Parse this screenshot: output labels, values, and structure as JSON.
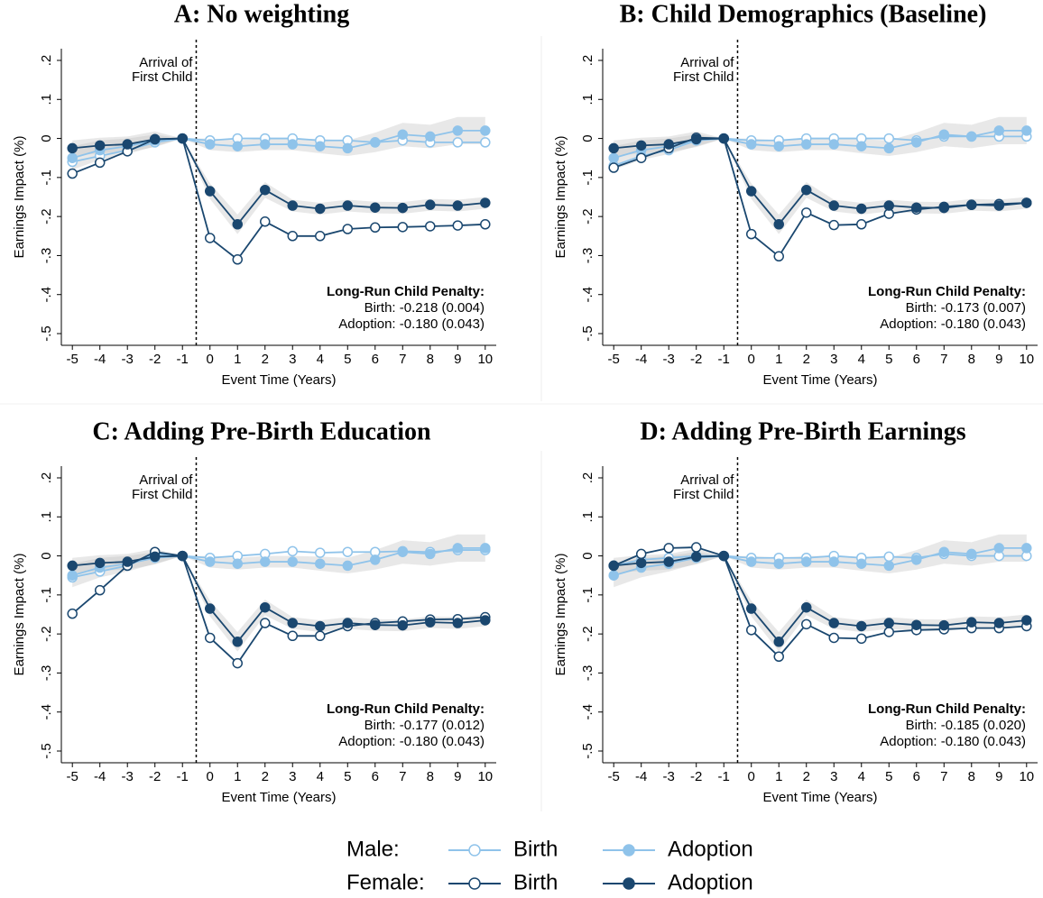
{
  "chart_data": [
    {
      "type": "line",
      "title": "A: No weighting",
      "xlabel": "Event Time (Years)",
      "ylabel": "Earnings Impact (%)",
      "x": [
        -5,
        -4,
        -3,
        -2,
        -1,
        0,
        1,
        2,
        3,
        4,
        5,
        6,
        7,
        8,
        9,
        10
      ],
      "xlim": [
        -5.4,
        10.4
      ],
      "xticks": [
        -5,
        -4,
        -3,
        -2,
        -1,
        0,
        1,
        2,
        3,
        4,
        5,
        6,
        7,
        8,
        9,
        10
      ],
      "ylim": [
        -0.53,
        0.23
      ],
      "yticks": [
        {
          "value": 0.2,
          "label": ".2"
        },
        {
          "value": 0.1,
          "label": ".1"
        },
        0,
        {
          "value": -0.1,
          "label": "-.1"
        },
        {
          "value": -0.2,
          "label": "-.2"
        },
        {
          "value": -0.3,
          "label": "-.3"
        },
        {
          "value": -0.4,
          "label": "-.4"
        },
        {
          "value": -0.5,
          "label": "-.5"
        }
      ],
      "vline": -0.5,
      "event_label": [
        "Arrival of",
        "First Child"
      ],
      "penalty": [
        "Long-Run Child Penalty:",
        "Birth: -0.218 (0.004)",
        "Adoption: -0.180 (0.043)"
      ],
      "series": [
        {
          "group": "Male:",
          "name": "Birth",
          "color": "#8fc3ea",
          "marker": "hollow",
          "values": [
            -0.06,
            -0.045,
            -0.03,
            -0.01,
            0,
            -0.005,
            0,
            0,
            0,
            -0.005,
            -0.005,
            -0.01,
            -0.005,
            -0.01,
            -0.01,
            -0.01
          ]
        },
        {
          "group": "Male:",
          "name": "Adoption",
          "color": "#8fc3ea",
          "marker": "filled",
          "values": [
            -0.05,
            -0.03,
            -0.02,
            -0.005,
            0,
            -0.015,
            -0.02,
            -0.015,
            -0.015,
            -0.02,
            -0.025,
            -0.01,
            0.01,
            0.005,
            0.02,
            0.02
          ],
          "ci_low": [
            -0.08,
            -0.055,
            -0.04,
            -0.02,
            0,
            -0.03,
            -0.035,
            -0.03,
            -0.03,
            -0.038,
            -0.045,
            -0.035,
            -0.02,
            -0.025,
            -0.015,
            -0.015
          ],
          "ci_high": [
            -0.02,
            -0.005,
            0,
            0.01,
            0,
            0,
            -0.005,
            0,
            0,
            -0.002,
            -0.005,
            0.015,
            0.04,
            0.035,
            0.055,
            0.055
          ]
        },
        {
          "group": "Female:",
          "name": "Birth",
          "color": "#1a476f",
          "marker": "hollow",
          "values": [
            -0.09,
            -0.062,
            -0.033,
            -0.002,
            0,
            -0.255,
            -0.31,
            -0.213,
            -0.25,
            -0.25,
            -0.232,
            -0.228,
            -0.227,
            -0.225,
            -0.223,
            -0.22
          ]
        },
        {
          "group": "Female:",
          "name": "Adoption",
          "color": "#1a476f",
          "marker": "filled",
          "values": [
            -0.025,
            -0.018,
            -0.015,
            -0.002,
            0,
            -0.135,
            -0.22,
            -0.132,
            -0.172,
            -0.18,
            -0.172,
            -0.177,
            -0.178,
            -0.17,
            -0.172,
            -0.165
          ],
          "ci_low": [
            -0.045,
            -0.038,
            -0.035,
            -0.022,
            0,
            -0.155,
            -0.245,
            -0.152,
            -0.187,
            -0.195,
            -0.187,
            -0.192,
            -0.193,
            -0.185,
            -0.187,
            -0.18
          ],
          "ci_high": [
            -0.005,
            0.002,
            0.005,
            0.018,
            0,
            -0.115,
            -0.195,
            -0.112,
            -0.157,
            -0.165,
            -0.157,
            -0.162,
            -0.163,
            -0.155,
            -0.157,
            -0.15
          ]
        }
      ]
    },
    {
      "type": "line",
      "title": "B: Child Demographics (Baseline)",
      "xlabel": "Event Time (Years)",
      "ylabel": "Earnings Impact (%)",
      "x": [
        -5,
        -4,
        -3,
        -2,
        -1,
        0,
        1,
        2,
        3,
        4,
        5,
        6,
        7,
        8,
        9,
        10
      ],
      "xlim": [
        -5.4,
        10.4
      ],
      "xticks": [
        -5,
        -4,
        -3,
        -2,
        -1,
        0,
        1,
        2,
        3,
        4,
        5,
        6,
        7,
        8,
        9,
        10
      ],
      "ylim": [
        -0.53,
        0.23
      ],
      "yticks": [
        {
          "value": 0.2,
          "label": ".2"
        },
        {
          "value": 0.1,
          "label": ".1"
        },
        0,
        {
          "value": -0.1,
          "label": "-.1"
        },
        {
          "value": -0.2,
          "label": "-.2"
        },
        {
          "value": -0.3,
          "label": "-.3"
        },
        {
          "value": -0.4,
          "label": "-.4"
        },
        {
          "value": -0.5,
          "label": "-.5"
        }
      ],
      "vline": -0.5,
      "event_label": [
        "Arrival of",
        "First Child"
      ],
      "penalty": [
        "Long-Run Child Penalty:",
        "Birth: -0.173 (0.007)",
        "Adoption: -0.180 (0.043)"
      ],
      "series": [
        {
          "group": "Male:",
          "name": "Birth",
          "color": "#8fc3ea",
          "marker": "hollow",
          "values": [
            -0.07,
            -0.045,
            -0.03,
            -0.005,
            0,
            -0.005,
            -0.005,
            0,
            0,
            0,
            0,
            -0.005,
            0.005,
            0.005,
            0.005,
            0.005
          ]
        },
        {
          "group": "Male:",
          "name": "Adoption",
          "color": "#8fc3ea",
          "marker": "filled",
          "values": [
            -0.05,
            -0.03,
            -0.02,
            -0.005,
            0,
            -0.015,
            -0.02,
            -0.015,
            -0.015,
            -0.02,
            -0.025,
            -0.01,
            0.01,
            0.005,
            0.02,
            0.02
          ],
          "ci_low": [
            -0.08,
            -0.055,
            -0.04,
            -0.02,
            0,
            -0.03,
            -0.035,
            -0.03,
            -0.03,
            -0.038,
            -0.045,
            -0.035,
            -0.02,
            -0.025,
            -0.015,
            -0.015
          ],
          "ci_high": [
            -0.02,
            -0.005,
            0,
            0.01,
            0,
            0,
            -0.005,
            0,
            0,
            -0.002,
            -0.005,
            0.015,
            0.04,
            0.035,
            0.055,
            0.055
          ]
        },
        {
          "group": "Female:",
          "name": "Birth",
          "color": "#1a476f",
          "marker": "hollow",
          "values": [
            -0.075,
            -0.05,
            -0.025,
            0.002,
            0,
            -0.245,
            -0.302,
            -0.19,
            -0.222,
            -0.22,
            -0.193,
            -0.182,
            -0.175,
            -0.17,
            -0.168,
            -0.165
          ]
        },
        {
          "group": "Female:",
          "name": "Adoption",
          "color": "#1a476f",
          "marker": "filled",
          "values": [
            -0.025,
            -0.018,
            -0.015,
            -0.002,
            0,
            -0.135,
            -0.22,
            -0.132,
            -0.172,
            -0.18,
            -0.172,
            -0.177,
            -0.178,
            -0.17,
            -0.172,
            -0.165
          ],
          "ci_low": [
            -0.045,
            -0.038,
            -0.035,
            -0.022,
            0,
            -0.155,
            -0.245,
            -0.152,
            -0.187,
            -0.195,
            -0.187,
            -0.192,
            -0.193,
            -0.185,
            -0.187,
            -0.18
          ],
          "ci_high": [
            -0.005,
            0.002,
            0.005,
            0.018,
            0,
            -0.115,
            -0.195,
            -0.112,
            -0.157,
            -0.165,
            -0.157,
            -0.162,
            -0.163,
            -0.155,
            -0.157,
            -0.15
          ]
        }
      ]
    },
    {
      "type": "line",
      "title": "C: Adding Pre-Birth Education",
      "xlabel": "Event Time (Years)",
      "ylabel": "Earnings Impact (%)",
      "x": [
        -5,
        -4,
        -3,
        -2,
        -1,
        0,
        1,
        2,
        3,
        4,
        5,
        6,
        7,
        8,
        9,
        10
      ],
      "xlim": [
        -5.4,
        10.4
      ],
      "xticks": [
        -5,
        -4,
        -3,
        -2,
        -1,
        0,
        1,
        2,
        3,
        4,
        5,
        6,
        7,
        8,
        9,
        10
      ],
      "ylim": [
        -0.53,
        0.23
      ],
      "yticks": [
        {
          "value": 0.2,
          "label": ".2"
        },
        {
          "value": 0.1,
          "label": ".1"
        },
        0,
        {
          "value": -0.1,
          "label": "-.1"
        },
        {
          "value": -0.2,
          "label": "-.2"
        },
        {
          "value": -0.3,
          "label": "-.3"
        },
        {
          "value": -0.4,
          "label": "-.4"
        },
        {
          "value": -0.5,
          "label": "-.5"
        }
      ],
      "vline": -0.5,
      "event_label": [
        "Arrival of",
        "First Child"
      ],
      "penalty": [
        "Long-Run Child Penalty:",
        "Birth: -0.177 (0.012)",
        "Adoption: -0.180 (0.043)"
      ],
      "series": [
        {
          "group": "Male:",
          "name": "Birth",
          "color": "#8fc3ea",
          "marker": "hollow",
          "values": [
            -0.055,
            -0.04,
            -0.025,
            0.005,
            0,
            -0.005,
            0,
            0.005,
            0.012,
            0.008,
            0.01,
            0.01,
            0.012,
            0.01,
            0.015,
            0.015
          ]
        },
        {
          "group": "Male:",
          "name": "Adoption",
          "color": "#8fc3ea",
          "marker": "filled",
          "values": [
            -0.05,
            -0.03,
            -0.02,
            -0.005,
            0,
            -0.015,
            -0.02,
            -0.015,
            -0.015,
            -0.02,
            -0.025,
            -0.01,
            0.01,
            0.005,
            0.02,
            0.02
          ],
          "ci_low": [
            -0.08,
            -0.055,
            -0.04,
            -0.02,
            0,
            -0.03,
            -0.035,
            -0.03,
            -0.03,
            -0.038,
            -0.045,
            -0.035,
            -0.02,
            -0.025,
            -0.015,
            -0.015
          ],
          "ci_high": [
            -0.02,
            -0.005,
            0,
            0.01,
            0,
            0,
            -0.005,
            0,
            0,
            -0.002,
            -0.005,
            0.015,
            0.04,
            0.035,
            0.055,
            0.055
          ]
        },
        {
          "group": "Female:",
          "name": "Birth",
          "color": "#1a476f",
          "marker": "hollow",
          "values": [
            -0.148,
            -0.088,
            -0.025,
            0.01,
            0,
            -0.21,
            -0.275,
            -0.172,
            -0.205,
            -0.205,
            -0.18,
            -0.172,
            -0.168,
            -0.163,
            -0.162,
            -0.157
          ]
        },
        {
          "group": "Female:",
          "name": "Adoption",
          "color": "#1a476f",
          "marker": "filled",
          "values": [
            -0.025,
            -0.018,
            -0.015,
            -0.002,
            0,
            -0.135,
            -0.22,
            -0.132,
            -0.172,
            -0.18,
            -0.172,
            -0.177,
            -0.178,
            -0.17,
            -0.172,
            -0.165
          ],
          "ci_low": [
            -0.045,
            -0.038,
            -0.035,
            -0.022,
            0,
            -0.155,
            -0.245,
            -0.152,
            -0.187,
            -0.195,
            -0.187,
            -0.192,
            -0.193,
            -0.185,
            -0.187,
            -0.18
          ],
          "ci_high": [
            -0.005,
            0.002,
            0.005,
            0.018,
            0,
            -0.115,
            -0.195,
            -0.112,
            -0.157,
            -0.165,
            -0.157,
            -0.162,
            -0.163,
            -0.155,
            -0.157,
            -0.15
          ]
        }
      ]
    },
    {
      "type": "line",
      "title": "D: Adding Pre-Birth Earnings",
      "xlabel": "Event Time (Years)",
      "ylabel": "Earnings Impact (%)",
      "x": [
        -5,
        -4,
        -3,
        -2,
        -1,
        0,
        1,
        2,
        3,
        4,
        5,
        6,
        7,
        8,
        9,
        10
      ],
      "xlim": [
        -5.4,
        10.4
      ],
      "xticks": [
        -5,
        -4,
        -3,
        -2,
        -1,
        0,
        1,
        2,
        3,
        4,
        5,
        6,
        7,
        8,
        9,
        10
      ],
      "ylim": [
        -0.53,
        0.23
      ],
      "yticks": [
        {
          "value": 0.2,
          "label": ".2"
        },
        {
          "value": 0.1,
          "label": ".1"
        },
        0,
        {
          "value": -0.1,
          "label": "-.1"
        },
        {
          "value": -0.2,
          "label": "-.2"
        },
        {
          "value": -0.3,
          "label": "-.3"
        },
        {
          "value": -0.4,
          "label": "-.4"
        },
        {
          "value": -0.5,
          "label": "-.5"
        }
      ],
      "vline": -0.5,
      "event_label": [
        "Arrival of",
        "First Child"
      ],
      "penalty": [
        "Long-Run Child Penalty:",
        "Birth: -0.185 (0.020)",
        "Adoption: -0.180 (0.043)"
      ],
      "series": [
        {
          "group": "Male:",
          "name": "Birth",
          "color": "#8fc3ea",
          "marker": "hollow",
          "values": [
            -0.025,
            -0.01,
            -0.005,
            0,
            0,
            -0.005,
            -0.005,
            -0.005,
            0,
            -0.005,
            -0.002,
            -0.005,
            0.005,
            0,
            0,
            0
          ]
        },
        {
          "group": "Male:",
          "name": "Adoption",
          "color": "#8fc3ea",
          "marker": "filled",
          "values": [
            -0.05,
            -0.03,
            -0.02,
            -0.005,
            0,
            -0.015,
            -0.02,
            -0.015,
            -0.015,
            -0.02,
            -0.025,
            -0.01,
            0.01,
            0.005,
            0.02,
            0.02
          ],
          "ci_low": [
            -0.08,
            -0.055,
            -0.04,
            -0.02,
            0,
            -0.03,
            -0.035,
            -0.03,
            -0.03,
            -0.038,
            -0.045,
            -0.035,
            -0.02,
            -0.025,
            -0.015,
            -0.015
          ],
          "ci_high": [
            -0.02,
            -0.005,
            0,
            0.01,
            0,
            0,
            -0.005,
            0,
            0,
            -0.002,
            -0.005,
            0.015,
            0.04,
            0.035,
            0.055,
            0.055
          ]
        },
        {
          "group": "Female:",
          "name": "Birth",
          "color": "#1a476f",
          "marker": "hollow",
          "values": [
            -0.025,
            0.005,
            0.02,
            0.022,
            0,
            -0.19,
            -0.258,
            -0.175,
            -0.21,
            -0.212,
            -0.195,
            -0.19,
            -0.188,
            -0.185,
            -0.185,
            -0.18
          ]
        },
        {
          "group": "Female:",
          "name": "Adoption",
          "color": "#1a476f",
          "marker": "filled",
          "values": [
            -0.025,
            -0.018,
            -0.015,
            -0.002,
            0,
            -0.135,
            -0.22,
            -0.132,
            -0.172,
            -0.18,
            -0.172,
            -0.177,
            -0.178,
            -0.17,
            -0.172,
            -0.165
          ],
          "ci_low": [
            -0.045,
            -0.038,
            -0.035,
            -0.022,
            0,
            -0.155,
            -0.245,
            -0.152,
            -0.187,
            -0.195,
            -0.187,
            -0.192,
            -0.193,
            -0.185,
            -0.187,
            -0.18
          ],
          "ci_high": [
            -0.005,
            0.002,
            0.005,
            0.018,
            0,
            -0.115,
            -0.195,
            -0.112,
            -0.157,
            -0.165,
            -0.157,
            -0.162,
            -0.163,
            -0.155,
            -0.157,
            -0.15
          ]
        }
      ]
    }
  ]
}
